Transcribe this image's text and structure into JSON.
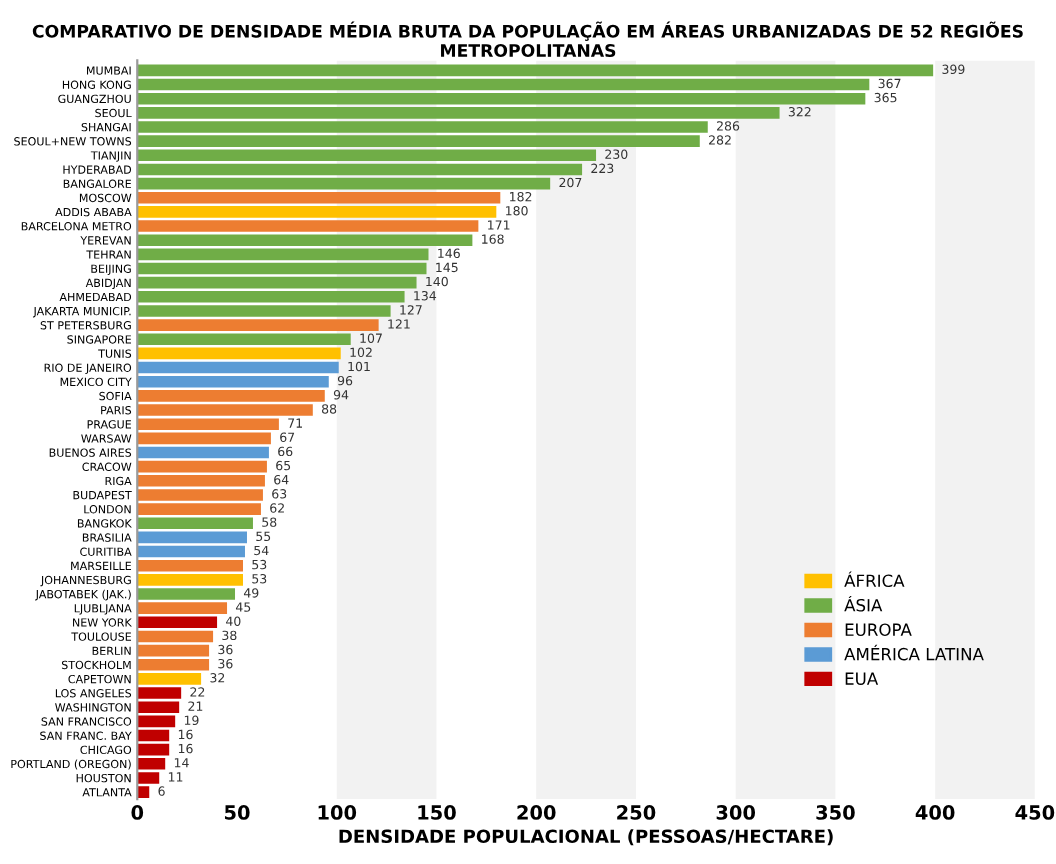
{
  "chart_data": {
    "type": "bar",
    "orientation": "horizontal",
    "title": "COMPARATIVO DE DENSIDADE MÉDIA BRUTA DA POPULAÇÃO EM ÁREAS URBANIZADAS DE 52 REGIÕES METROPOLITANAS",
    "xlabel": "DENSIDADE POPULACIONAL (PESSOAS/HECTARE)",
    "categories": [
      "MUMBAI",
      "HONG KONG",
      "GUANGZHOU",
      "SEOUL",
      "SHANGAI",
      "SEOUL+NEW TOWNS",
      "TIANJIN",
      "HYDERABAD",
      "BANGALORE",
      "MOSCOW",
      "ADDIS ABABA",
      "BARCELONA METRO",
      "YEREVAN",
      "TEHRAN",
      "BEIJING",
      "ABIDJAN",
      "AHMEDABAD",
      "JAKARTA MUNICIP.",
      "ST PETERSBURG",
      "SINGAPORE",
      "TUNIS",
      "RIO DE JANEIRO",
      "MEXICO CITY",
      "SOFIA",
      "PARIS",
      "PRAGUE",
      "WARSAW",
      "BUENOS AIRES",
      "CRACOW",
      "RIGA",
      "BUDAPEST",
      "LONDON",
      "BANGKOK",
      "BRASILIA",
      "CURITIBA",
      "MARSEILLE",
      "JOHANNESBURG",
      "JABOTABEK (JAK.)",
      "LJUBLJANA",
      "NEW YORK",
      "TOULOUSE",
      "BERLIN",
      "STOCKHOLM",
      "CAPETOWN",
      "LOS ANGELES",
      "WASHINGTON",
      "SAN FRANCISCO",
      "SAN FRANC. BAY",
      "CHICAGO",
      "PORTLAND (OREGON)",
      "HOUSTON",
      "ATLANTA"
    ],
    "series": [
      {
        "name": "ÁFRICA",
        "color": "#ffc000",
        "values": [
          null,
          null,
          null,
          null,
          null,
          null,
          null,
          null,
          null,
          null,
          180,
          null,
          null,
          null,
          null,
          null,
          null,
          null,
          null,
          null,
          102,
          null,
          null,
          null,
          null,
          null,
          null,
          null,
          null,
          null,
          null,
          null,
          null,
          null,
          null,
          null,
          53,
          null,
          null,
          null,
          null,
          null,
          null,
          32,
          null,
          null,
          null,
          null,
          null,
          null,
          null,
          null
        ]
      },
      {
        "name": "ÁSIA",
        "color": "#70ad47",
        "values": [
          399,
          367,
          365,
          322,
          286,
          282,
          230,
          223,
          207,
          null,
          null,
          null,
          168,
          146,
          145,
          140,
          134,
          127,
          null,
          107,
          null,
          null,
          null,
          null,
          null,
          null,
          null,
          null,
          null,
          null,
          null,
          null,
          58,
          null,
          null,
          null,
          null,
          49,
          null,
          null,
          null,
          null,
          null,
          null,
          null,
          null,
          null,
          null,
          null,
          null,
          null,
          null
        ]
      },
      {
        "name": "EUROPA",
        "color": "#ed7d31",
        "values": [
          null,
          null,
          null,
          null,
          null,
          null,
          null,
          null,
          null,
          182,
          null,
          171,
          null,
          null,
          null,
          null,
          null,
          null,
          121,
          null,
          null,
          null,
          null,
          94,
          88,
          71,
          67,
          null,
          65,
          64,
          63,
          62,
          null,
          null,
          null,
          53,
          null,
          null,
          45,
          null,
          38,
          36,
          36,
          null,
          null,
          null,
          null,
          null,
          null,
          null,
          null,
          null
        ]
      },
      {
        "name": "AMÉRICA LATINA",
        "color": "#5b9bd5",
        "values": [
          null,
          null,
          null,
          null,
          null,
          null,
          null,
          null,
          null,
          null,
          null,
          null,
          null,
          null,
          null,
          null,
          null,
          null,
          null,
          null,
          null,
          101,
          96,
          null,
          null,
          null,
          null,
          66,
          null,
          null,
          null,
          null,
          null,
          55,
          54,
          null,
          null,
          null,
          null,
          null,
          null,
          null,
          null,
          null,
          null,
          null,
          null,
          null,
          null,
          null,
          null,
          null
        ]
      },
      {
        "name": "EUA",
        "color": "#c00000",
        "values": [
          null,
          null,
          null,
          null,
          null,
          null,
          null,
          null,
          null,
          null,
          null,
          null,
          null,
          null,
          null,
          null,
          null,
          null,
          null,
          null,
          null,
          null,
          null,
          null,
          null,
          null,
          null,
          null,
          null,
          null,
          null,
          null,
          null,
          null,
          null,
          null,
          null,
          null,
          null,
          40,
          null,
          null,
          null,
          null,
          22,
          21,
          19,
          16,
          16,
          14,
          11,
          6
        ]
      }
    ],
    "xlim": [
      0,
      450
    ],
    "xticks": [
      0,
      50,
      100,
      150,
      200,
      250,
      300,
      350,
      400,
      450
    ],
    "bands": [
      {
        "axis": "x",
        "from": 100,
        "to": 150,
        "color": "#f2f2f2"
      },
      {
        "axis": "x",
        "from": 200,
        "to": 250,
        "color": "#f2f2f2"
      },
      {
        "axis": "x",
        "from": 300,
        "to": 350,
        "color": "#f2f2f2"
      },
      {
        "axis": "x",
        "from": 400,
        "to": 450,
        "color": "#f2f2f2"
      }
    ],
    "data_labels": true,
    "legend": "bottom right",
    "grid": false
  }
}
